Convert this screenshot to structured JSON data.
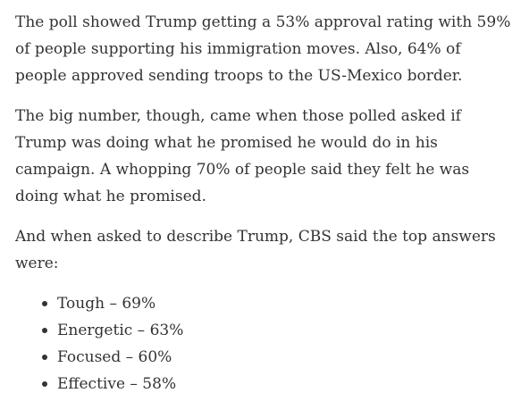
{
  "article": {
    "paragraphs": [
      "The poll showed Trump getting a 53% approval rating with 59% of people supporting his immigration moves. Also, 64% of people approved sending troops to the US-Mexico border.",
      "The big number, though, came when those polled asked if Trump was doing what he promised he would do in his campaign. A whopping 70% of people said they felt he was doing what he promised.",
      "And when asked to describe Trump, CBS said the top answers were:"
    ],
    "list_items": [
      "Tough – 69%",
      "Energetic – 63%",
      "Focused – 60%",
      "Effective – 58%"
    ]
  }
}
